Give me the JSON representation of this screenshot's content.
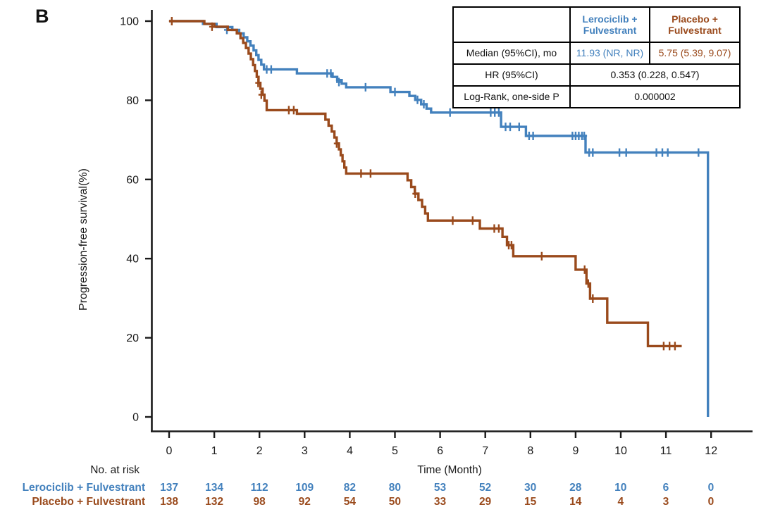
{
  "panel_label": "B",
  "colors": {
    "lerociclib": "#4381BD",
    "placebo": "#9A4A1C",
    "axis": "#1a1a1a",
    "table_border": "#000000"
  },
  "stats_table": {
    "header": {
      "blank": "",
      "arm1": "Lerociclib +\nFulvestrant",
      "arm2": "Placebo +\nFulvestrant"
    },
    "median_row": {
      "label": "Median (95%CI), mo",
      "arm1": "11.93 (NR, NR)",
      "arm2": "5.75 (5.39, 9.07)"
    },
    "hr_row": {
      "label": "HR (95%CI)",
      "value": "0.353 (0.228, 0.547)"
    },
    "logrank_row": {
      "label": "Log-Rank, one-side P",
      "value": "0.000002"
    }
  },
  "chart_data": {
    "type": "line",
    "subtype": "kaplan-meier-step",
    "title": "",
    "xlabel": "Time (Month)",
    "ylabel": "Progression-free survival(%)",
    "xlim": [
      0,
      12
    ],
    "ylim": [
      0,
      100
    ],
    "xticks": [
      0,
      1,
      2,
      3,
      4,
      5,
      6,
      7,
      8,
      9,
      10,
      11,
      12
    ],
    "yticks": [
      100,
      80,
      60,
      40,
      20,
      0
    ],
    "grid": false,
    "legend_position": "none",
    "series": [
      {
        "name": "Lerociclib + Fulvestrant",
        "color": "#4381BD",
        "median_95ci_mo": "11.93 (NR, NR)",
        "end_time": 11.93,
        "steps": [
          [
            0,
            100
          ],
          [
            0.75,
            99.3
          ],
          [
            1.05,
            98.5
          ],
          [
            1.4,
            97.8
          ],
          [
            1.55,
            96.9
          ],
          [
            1.65,
            95.9
          ],
          [
            1.73,
            94.9
          ],
          [
            1.8,
            93.8
          ],
          [
            1.87,
            92.6
          ],
          [
            1.93,
            91.4
          ],
          [
            1.98,
            90.2
          ],
          [
            2.04,
            89.0
          ],
          [
            2.1,
            87.8
          ],
          [
            2.83,
            86.8
          ],
          [
            3.62,
            85.9
          ],
          [
            3.72,
            85.1
          ],
          [
            3.82,
            84.2
          ],
          [
            3.92,
            83.3
          ],
          [
            4.9,
            82.1
          ],
          [
            5.32,
            81.1
          ],
          [
            5.45,
            80.1
          ],
          [
            5.58,
            79.0
          ],
          [
            5.7,
            77.9
          ],
          [
            5.8,
            76.9
          ],
          [
            7.35,
            73.3
          ],
          [
            7.9,
            71.0
          ],
          [
            9.22,
            66.8
          ],
          [
            11.93,
            0
          ]
        ],
        "censors": [
          [
            1.28,
            97.8
          ],
          [
            2.16,
            87.8
          ],
          [
            2.26,
            87.8
          ],
          [
            3.5,
            86.8
          ],
          [
            3.58,
            86.8
          ],
          [
            3.76,
            84.6
          ],
          [
            4.35,
            83.3
          ],
          [
            5.0,
            82.1
          ],
          [
            5.5,
            80.1
          ],
          [
            5.64,
            79.0
          ],
          [
            6.22,
            76.9
          ],
          [
            7.12,
            76.9
          ],
          [
            7.21,
            76.9
          ],
          [
            7.3,
            76.9
          ],
          [
            7.45,
            73.3
          ],
          [
            7.55,
            73.3
          ],
          [
            7.75,
            73.3
          ],
          [
            7.97,
            71.0
          ],
          [
            8.06,
            71.0
          ],
          [
            8.93,
            71.0
          ],
          [
            9.0,
            71.0
          ],
          [
            9.07,
            71.0
          ],
          [
            9.14,
            71.0
          ],
          [
            9.19,
            71.0
          ],
          [
            9.3,
            66.8
          ],
          [
            9.38,
            66.8
          ],
          [
            9.97,
            66.8
          ],
          [
            10.12,
            66.8
          ],
          [
            10.79,
            66.8
          ],
          [
            10.92,
            66.8
          ],
          [
            11.04,
            66.8
          ],
          [
            11.72,
            66.8
          ]
        ]
      },
      {
        "name": "Placebo + Fulvestrant",
        "color": "#9A4A1C",
        "median_95ci_mo": "5.75 (5.39, 9.07)",
        "end_time": 11.35,
        "steps": [
          [
            0,
            100
          ],
          [
            0.78,
            99.3
          ],
          [
            1.0,
            98.6
          ],
          [
            1.3,
            97.8
          ],
          [
            1.5,
            96.9
          ],
          [
            1.58,
            95.7
          ],
          [
            1.64,
            94.5
          ],
          [
            1.7,
            93.2
          ],
          [
            1.76,
            91.8
          ],
          [
            1.81,
            90.4
          ],
          [
            1.86,
            88.9
          ],
          [
            1.9,
            87.4
          ],
          [
            1.94,
            85.9
          ],
          [
            1.98,
            84.4
          ],
          [
            2.02,
            82.9
          ],
          [
            2.07,
            81.4
          ],
          [
            2.11,
            79.9
          ],
          [
            2.16,
            77.5
          ],
          [
            2.83,
            76.6
          ],
          [
            3.46,
            75.1
          ],
          [
            3.53,
            73.6
          ],
          [
            3.6,
            72.1
          ],
          [
            3.66,
            70.6
          ],
          [
            3.71,
            69.1
          ],
          [
            3.76,
            67.6
          ],
          [
            3.8,
            66.1
          ],
          [
            3.84,
            64.6
          ],
          [
            3.88,
            63.0
          ],
          [
            3.92,
            61.5
          ],
          [
            5.28,
            59.8
          ],
          [
            5.36,
            58.1
          ],
          [
            5.44,
            56.4
          ],
          [
            5.52,
            54.8
          ],
          [
            5.6,
            53.1
          ],
          [
            5.67,
            51.4
          ],
          [
            5.73,
            49.6
          ],
          [
            6.88,
            47.6
          ],
          [
            7.38,
            45.5
          ],
          [
            7.48,
            43.4
          ],
          [
            7.62,
            40.6
          ],
          [
            9.0,
            37.2
          ],
          [
            9.24,
            33.7
          ],
          [
            9.32,
            29.9
          ],
          [
            9.7,
            23.8
          ],
          [
            10.6,
            17.9
          ]
        ],
        "censors": [
          [
            0.06,
            100
          ],
          [
            0.95,
            98.6
          ],
          [
            1.97,
            84.4
          ],
          [
            2.04,
            81.4
          ],
          [
            2.65,
            77.5
          ],
          [
            2.76,
            77.5
          ],
          [
            3.71,
            69.1
          ],
          [
            4.25,
            61.5
          ],
          [
            4.46,
            61.5
          ],
          [
            5.45,
            56.4
          ],
          [
            6.28,
            49.6
          ],
          [
            6.72,
            49.6
          ],
          [
            7.2,
            47.6
          ],
          [
            7.3,
            47.6
          ],
          [
            7.52,
            43.4
          ],
          [
            7.58,
            43.4
          ],
          [
            8.25,
            40.6
          ],
          [
            9.2,
            37.2
          ],
          [
            9.28,
            33.7
          ],
          [
            9.38,
            29.9
          ],
          [
            10.95,
            17.9
          ],
          [
            11.08,
            17.9
          ],
          [
            11.2,
            17.9
          ]
        ]
      }
    ]
  },
  "risk_table": {
    "title": "No. at risk",
    "rows": [
      {
        "label": "Lerociclib + Fulvestrant",
        "color": "#4381BD",
        "counts": [
          137,
          134,
          112,
          109,
          82,
          80,
          53,
          52,
          30,
          28,
          10,
          6,
          0
        ]
      },
      {
        "label": "Placebo + Fulvestrant",
        "color": "#9A4A1C",
        "counts": [
          138,
          132,
          98,
          92,
          54,
          50,
          33,
          29,
          15,
          14,
          4,
          3,
          0
        ]
      }
    ]
  }
}
